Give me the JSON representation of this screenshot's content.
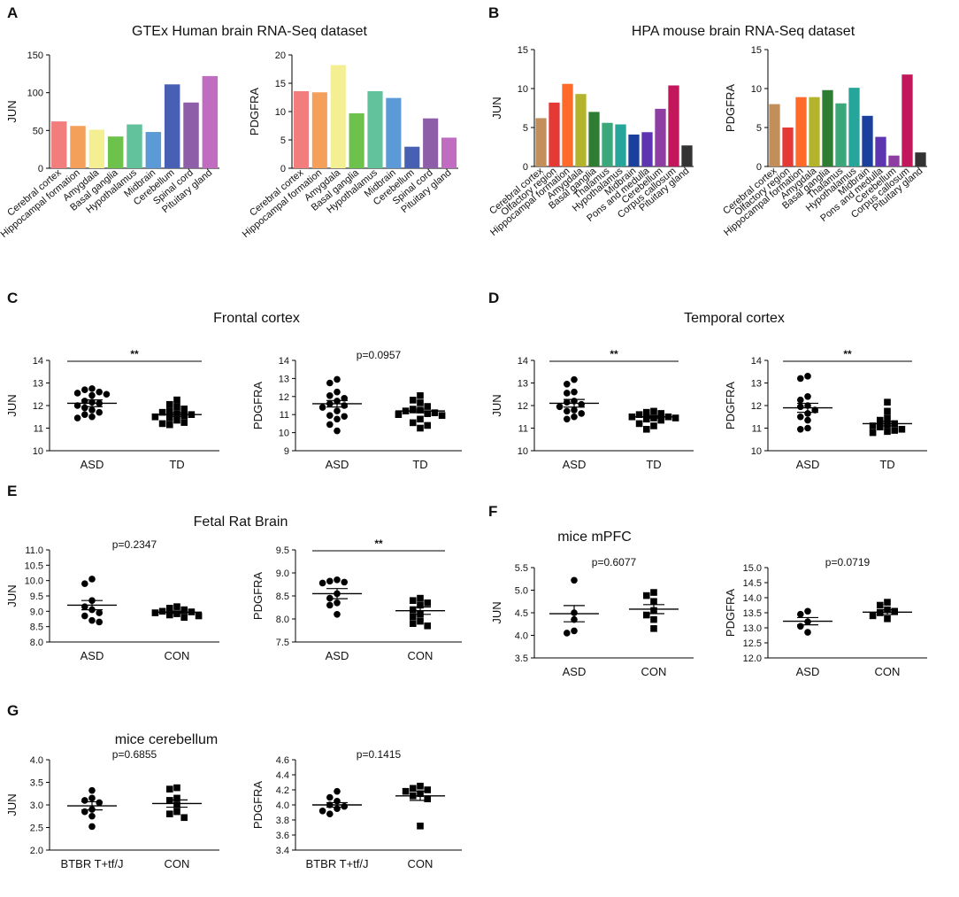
{
  "panel_labels": [
    "A",
    "B",
    "C",
    "D",
    "E",
    "F",
    "G"
  ],
  "section_titles": {
    "A": "GTEx Human brain RNA-Seq dataset",
    "B": "HPA mouse brain RNA-Seq dataset",
    "C": "Frontal cortex",
    "D": "Temporal cortex",
    "E": "Fetal Rat Brain",
    "F": "mice mPFC",
    "G": "mice cerebellum"
  },
  "chart_data": [
    {
      "id": "A1",
      "type": "bar",
      "ylabel": "JUN",
      "ylim": [
        0,
        150
      ],
      "yticks": [
        0,
        50,
        100,
        150
      ],
      "categories": [
        "Cerebral cortex",
        "Hippocampal formation",
        "Amygdala",
        "Basal ganglia",
        "Hypothalamus",
        "Midbrain",
        "Cerebellum",
        "Spinal cord",
        "Pituitary gland"
      ],
      "values": [
        62,
        56,
        51,
        42,
        58,
        48,
        111,
        87,
        122
      ],
      "colors": [
        "#f27d7d",
        "#f5a05a",
        "#f3ef92",
        "#6cc24a",
        "#62c29c",
        "#5b9ad6",
        "#4860b4",
        "#8e5fa8",
        "#c06cc0"
      ]
    },
    {
      "id": "A2",
      "type": "bar",
      "ylabel": "PDGFRA",
      "ylim": [
        0,
        20
      ],
      "yticks": [
        0,
        5,
        10,
        15,
        20
      ],
      "categories": [
        "Cerebral cortex",
        "Hippocampal formation",
        "Amygdala",
        "Basal ganglia",
        "Hypothalamus",
        "Midbrain",
        "Cerebellum",
        "Spinal cord",
        "Pituitary gland"
      ],
      "values": [
        13.6,
        13.4,
        18.2,
        9.7,
        13.6,
        12.4,
        3.8,
        8.8,
        5.4
      ],
      "colors": [
        "#f27d7d",
        "#f5a05a",
        "#f3ef92",
        "#6cc24a",
        "#62c29c",
        "#5b9ad6",
        "#4860b4",
        "#8e5fa8",
        "#c06cc0"
      ]
    },
    {
      "id": "B1",
      "type": "bar",
      "ylabel": "JUN",
      "ylim": [
        0,
        15
      ],
      "yticks": [
        0,
        5,
        10,
        15
      ],
      "categories": [
        "Cerebral cortex",
        "Olfactory region",
        "Hippocampal formation",
        "Amygdala",
        "Basal ganglia",
        "Thalamus",
        "Hypothalamus",
        "Midbrain",
        "Pons and medulla",
        "Cerebellum",
        "Corpus callosum",
        "Pituitary gland"
      ],
      "values": [
        6.2,
        8.2,
        10.6,
        9.3,
        7.0,
        5.6,
        5.4,
        4.1,
        4.4,
        7.4,
        10.4,
        2.7
      ],
      "colors": [
        "#c28e5a",
        "#e53935",
        "#ff6a2a",
        "#b3b32c",
        "#2e7d32",
        "#3aa87a",
        "#26a69a",
        "#1a3f9c",
        "#5e35b1",
        "#8e3ea3",
        "#c2185b",
        "#333333"
      ]
    },
    {
      "id": "B2",
      "type": "bar",
      "ylabel": "PDGFRA",
      "ylim": [
        0,
        15
      ],
      "yticks": [
        0,
        5,
        10,
        15
      ],
      "categories": [
        "Cerebral cortex",
        "Olfactory region",
        "Hippocampal formation",
        "Amygdala",
        "Basal ganglia",
        "Thalamus",
        "Hypothalamus",
        "Midbrain",
        "Pons and medulla",
        "Cerebellum",
        "Corpus callosum",
        "Pituitary gland"
      ],
      "values": [
        8.0,
        5.0,
        8.9,
        8.9,
        9.8,
        8.1,
        10.1,
        6.5,
        3.8,
        1.4,
        11.8,
        1.8
      ],
      "colors": [
        "#c28e5a",
        "#e53935",
        "#ff6a2a",
        "#b3b32c",
        "#2e7d32",
        "#3aa87a",
        "#26a69a",
        "#1a3f9c",
        "#5e35b1",
        "#8e3ea3",
        "#c2185b",
        "#333333"
      ]
    },
    {
      "id": "C1",
      "type": "scatter",
      "ylabel": "JUN",
      "ylim": [
        10,
        14
      ],
      "yticks": [
        10,
        11,
        12,
        13,
        14
      ],
      "annotation": "**",
      "bracket": true,
      "groups": [
        {
          "name": "ASD",
          "marker": "circle",
          "mean": 12.1,
          "sem": 0.15,
          "values": [
            12.7,
            12.75,
            12.6,
            12.5,
            12.55,
            12.45,
            12.2,
            12.15,
            12.1,
            12.0,
            11.9,
            11.8,
            11.7,
            11.6,
            11.5,
            11.45
          ]
        },
        {
          "name": "TD",
          "marker": "square",
          "mean": 11.6,
          "sem": 0.08,
          "values": [
            12.25,
            12.05,
            11.95,
            11.85,
            11.75,
            11.7,
            11.65,
            11.6,
            11.55,
            11.5,
            11.45,
            11.35,
            11.25,
            11.2,
            11.15
          ]
        }
      ]
    },
    {
      "id": "C2",
      "type": "scatter",
      "ylabel": "PDGFRA",
      "ylim": [
        9,
        14
      ],
      "yticks": [
        9,
        10,
        11,
        12,
        13,
        14
      ],
      "annotation": "p=0.0957",
      "bracket": false,
      "groups": [
        {
          "name": "ASD",
          "marker": "circle",
          "mean": 11.6,
          "sem": 0.18,
          "values": [
            12.95,
            12.75,
            12.25,
            12.05,
            11.9,
            11.75,
            11.6,
            11.5,
            11.4,
            11.2,
            10.95,
            10.9,
            10.75,
            10.45,
            10.1
          ]
        },
        {
          "name": "TD",
          "marker": "square",
          "mean": 11.2,
          "sem": 0.1,
          "values": [
            12.05,
            11.8,
            11.65,
            11.45,
            11.3,
            11.25,
            11.2,
            11.1,
            11.05,
            11.0,
            10.95,
            10.75,
            10.55,
            10.4,
            10.25
          ]
        }
      ]
    },
    {
      "id": "D1",
      "type": "scatter",
      "ylabel": "JUN",
      "ylim": [
        10,
        14
      ],
      "yticks": [
        10,
        11,
        12,
        13,
        14
      ],
      "annotation": "**",
      "bracket": true,
      "groups": [
        {
          "name": "ASD",
          "marker": "circle",
          "mean": 12.1,
          "sem": 0.17,
          "values": [
            13.15,
            12.95,
            12.6,
            12.55,
            12.2,
            12.15,
            12.05,
            11.95,
            11.8,
            11.75,
            11.65,
            11.5,
            11.4
          ]
        },
        {
          "name": "TD",
          "marker": "square",
          "mean": 11.5,
          "sem": 0.06,
          "values": [
            11.75,
            11.7,
            11.65,
            11.6,
            11.5,
            11.5,
            11.45,
            11.45,
            11.4,
            11.35,
            11.2,
            11.1,
            10.95
          ]
        }
      ]
    },
    {
      "id": "D2",
      "type": "scatter",
      "ylabel": "PDGFRA",
      "ylim": [
        10,
        14
      ],
      "yticks": [
        10,
        11,
        12,
        13,
        14
      ],
      "annotation": "**",
      "bracket": true,
      "groups": [
        {
          "name": "ASD",
          "marker": "circle",
          "mean": 11.9,
          "sem": 0.2,
          "values": [
            13.3,
            13.2,
            12.4,
            12.25,
            12.0,
            11.95,
            11.8,
            11.65,
            11.5,
            11.35,
            11.0,
            10.95
          ]
        },
        {
          "name": "TD",
          "marker": "square",
          "mean": 11.2,
          "sem": 0.1,
          "values": [
            12.15,
            11.75,
            11.45,
            11.35,
            11.2,
            11.15,
            11.1,
            11.05,
            10.95,
            10.9,
            10.85,
            10.8
          ]
        }
      ]
    },
    {
      "id": "E1",
      "type": "scatter",
      "ylabel": "JUN",
      "ylim": [
        8.0,
        11.0
      ],
      "yticks": [
        8.0,
        8.5,
        9.0,
        9.5,
        10.0,
        10.5,
        11.0
      ],
      "annotation": "p=0.2347",
      "bracket": false,
      "groups": [
        {
          "name": "ASD",
          "marker": "circle",
          "mean": 9.2,
          "sem": 0.15,
          "values": [
            10.05,
            9.9,
            9.35,
            9.15,
            9.05,
            8.95,
            8.85,
            8.7,
            8.65
          ]
        },
        {
          "name": "CON",
          "marker": "square",
          "mean": 8.97,
          "sem": 0.04,
          "values": [
            9.15,
            9.1,
            9.05,
            9.0,
            8.98,
            8.95,
            8.92,
            8.88,
            8.85,
            8.8
          ]
        }
      ]
    },
    {
      "id": "E2",
      "type": "scatter",
      "ylabel": "PDGFRA",
      "ylim": [
        7.5,
        9.5
      ],
      "yticks": [
        7.5,
        8.0,
        8.5,
        9.0,
        9.5
      ],
      "annotation": "**",
      "bracket": true,
      "groups": [
        {
          "name": "ASD",
          "marker": "circle",
          "mean": 8.55,
          "sem": 0.11,
          "values": [
            8.85,
            8.82,
            8.8,
            8.78,
            8.55,
            8.45,
            8.35,
            8.3,
            8.1
          ]
        },
        {
          "name": "CON",
          "marker": "square",
          "mean": 8.18,
          "sem": 0.08,
          "values": [
            8.45,
            8.4,
            8.35,
            8.3,
            8.2,
            8.1,
            8.05,
            7.95,
            7.9,
            7.85
          ]
        }
      ]
    },
    {
      "id": "F1",
      "type": "scatter",
      "ylabel": "JUN",
      "ylim": [
        3.5,
        5.5
      ],
      "yticks": [
        3.5,
        4.0,
        4.5,
        5.0,
        5.5
      ],
      "annotation": "p=0.6077",
      "bracket": false,
      "groups": [
        {
          "name": "ASD",
          "marker": "circle",
          "mean": 4.48,
          "sem": 0.18,
          "values": [
            5.22,
            4.5,
            4.35,
            4.1,
            4.05
          ]
        },
        {
          "name": "CON",
          "marker": "square",
          "mean": 4.58,
          "sem": 0.1,
          "values": [
            4.95,
            4.88,
            4.75,
            4.55,
            4.45,
            4.35,
            4.15
          ]
        }
      ]
    },
    {
      "id": "F2",
      "type": "scatter",
      "ylabel": "PDGFRA",
      "ylim": [
        12.0,
        15.0
      ],
      "yticks": [
        12.0,
        12.5,
        13.0,
        13.5,
        14.0,
        14.5,
        15.0
      ],
      "annotation": "p=0.0719",
      "bracket": false,
      "groups": [
        {
          "name": "ASD",
          "marker": "circle",
          "mean": 13.22,
          "sem": 0.12,
          "values": [
            13.55,
            13.45,
            13.2,
            13.05,
            12.85
          ]
        },
        {
          "name": "CON",
          "marker": "square",
          "mean": 13.52,
          "sem": 0.08,
          "values": [
            13.85,
            13.75,
            13.6,
            13.55,
            13.5,
            13.4,
            13.3
          ]
        }
      ]
    },
    {
      "id": "G1",
      "type": "scatter",
      "ylabel": "JUN",
      "ylim": [
        2.0,
        4.0
      ],
      "yticks": [
        2.0,
        2.5,
        3.0,
        3.5,
        4.0
      ],
      "annotation": "p=0.6855",
      "bracket": false,
      "groups": [
        {
          "name": "BTBR T+tf/J",
          "marker": "circle",
          "mean": 2.98,
          "sem": 0.09,
          "values": [
            3.32,
            3.15,
            3.1,
            3.05,
            2.9,
            2.85,
            2.75,
            2.52
          ]
        },
        {
          "name": "CON",
          "marker": "square",
          "mean": 3.03,
          "sem": 0.08,
          "values": [
            3.38,
            3.35,
            3.15,
            3.1,
            3.0,
            2.85,
            2.8,
            2.72
          ]
        }
      ]
    },
    {
      "id": "G2",
      "type": "scatter",
      "ylabel": "PDGFRA",
      "ylim": [
        3.4,
        4.6
      ],
      "yticks": [
        3.4,
        3.6,
        3.8,
        4.0,
        4.2,
        4.4,
        4.6
      ],
      "annotation": "p=0.1415",
      "bracket": false,
      "groups": [
        {
          "name": "BTBR T+tf/J",
          "marker": "circle",
          "mean": 4.0,
          "sem": 0.03,
          "values": [
            4.18,
            4.1,
            4.05,
            4.0,
            3.98,
            3.95,
            3.92,
            3.88
          ]
        },
        {
          "name": "CON",
          "marker": "square",
          "mean": 4.12,
          "sem": 0.06,
          "values": [
            4.25,
            4.22,
            4.2,
            4.18,
            4.15,
            4.12,
            4.08,
            3.72
          ]
        }
      ]
    }
  ]
}
